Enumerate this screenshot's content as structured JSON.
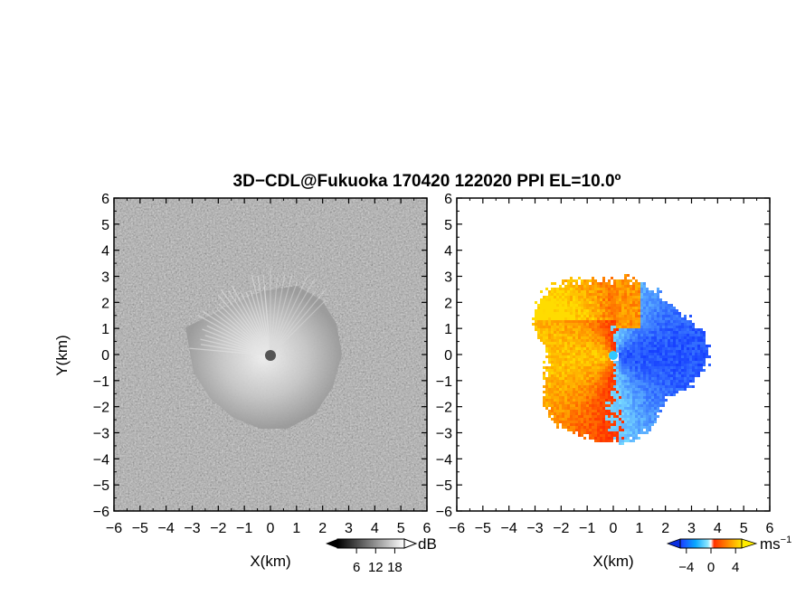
{
  "title": "3D−CDL@Fukuoka 170420 122020 PPI EL=10.0º",
  "colors": {
    "background": "#ffffff",
    "frame": "#000000"
  },
  "chart_data": [
    {
      "type": "heatmap",
      "panel": "left",
      "field": "backscatter intensity (grayscale)",
      "xlabel": "X(km)",
      "ylabel": "Y(km)",
      "xlim": [
        -6,
        6
      ],
      "ylim": [
        -6,
        6
      ],
      "x_ticks": [
        "−6",
        "−5",
        "−4",
        "−3",
        "−2",
        "−1",
        "0",
        "1",
        "2",
        "3",
        "4",
        "5",
        "6"
      ],
      "y_ticks": [
        "−6",
        "−5",
        "−4",
        "−3",
        "−2",
        "−1",
        "0",
        "1",
        "2",
        "3",
        "4",
        "5",
        "6"
      ],
      "colorbar": {
        "unit": "dB",
        "ticks": [
          "6",
          "12",
          "18"
        ],
        "tick_values": [
          6,
          12,
          18
        ],
        "range": [
          0,
          21
        ],
        "colormap": "grayscale black to white",
        "extend": "both"
      },
      "echo_region": {
        "center": [
          0,
          0
        ],
        "approx_radius_km": 3.2,
        "radial_streaks_toward": "north/north-west",
        "blind_spot_radius_km": 0.2
      }
    },
    {
      "type": "heatmap",
      "panel": "right",
      "field": "Doppler velocity",
      "xlabel": "X(km)",
      "ylabel": "",
      "xlim": [
        -6,
        6
      ],
      "ylim": [
        -6,
        6
      ],
      "x_ticks": [
        "−6",
        "−5",
        "−4",
        "−3",
        "−2",
        "−1",
        "0",
        "1",
        "2",
        "3",
        "4",
        "5",
        "6"
      ],
      "y_ticks": [
        "−6",
        "−5",
        "−4",
        "−3",
        "−2",
        "−1",
        "0",
        "1",
        "2",
        "3",
        "4",
        "5",
        "6"
      ],
      "colorbar": {
        "unit": "ms",
        "unit_superscript": "−1",
        "ticks": [
          "−4",
          "0",
          "4"
        ],
        "tick_values": [
          -4,
          0,
          4
        ],
        "range": [
          -5,
          5
        ],
        "colormap": "blue-cyan (negative) to red-orange-yellow (positive)",
        "extend": "both"
      },
      "pattern": {
        "negative_side": "east (x > 0)",
        "positive_side": "west (x < 0)",
        "approx_radius_km": 3.0
      }
    }
  ]
}
